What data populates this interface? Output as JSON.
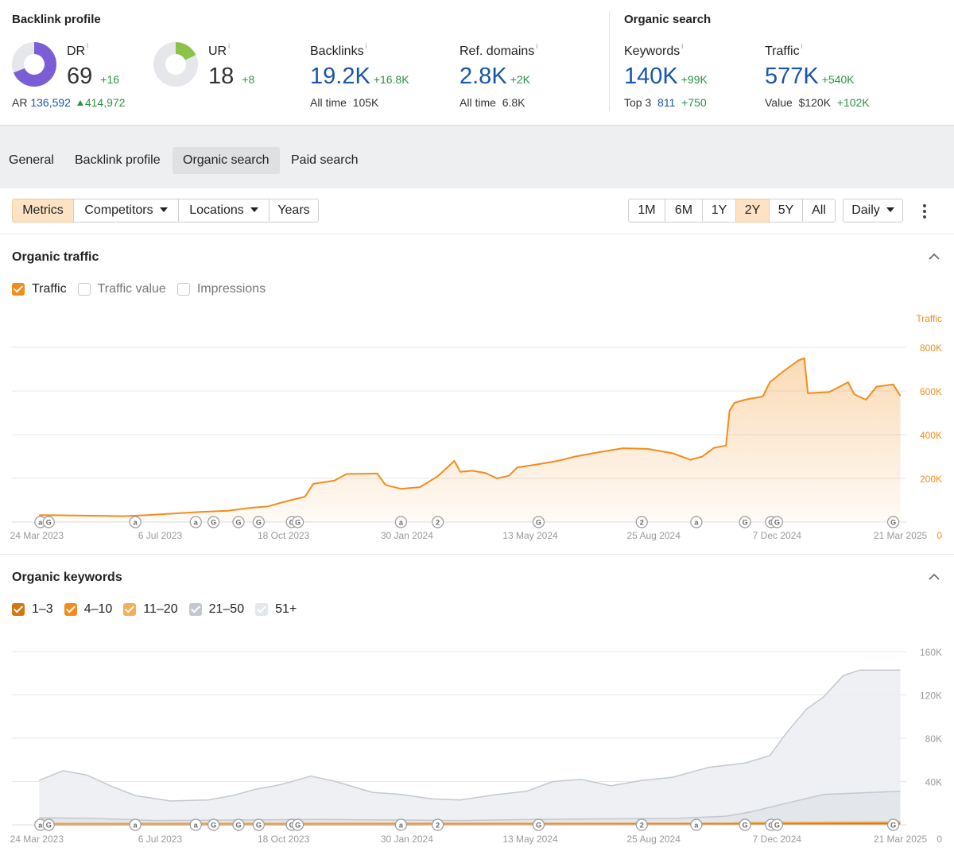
{
  "backlink_profile": {
    "title": "Backlink profile",
    "dr": {
      "label": "DR",
      "info": "i",
      "value": "69",
      "delta": "+16",
      "fraction": 0.69,
      "color": "#7b5ed6"
    },
    "ar": {
      "label": "AR",
      "value": "136,592",
      "delta": "414,972"
    },
    "ur": {
      "label": "UR",
      "info": "i",
      "value": "18",
      "delta": "+8",
      "fraction": 0.18,
      "color": "#8bc34a"
    },
    "backlinks": {
      "label": "Backlinks",
      "info": "i",
      "value": "19.2K",
      "delta": "+16.8K",
      "sub_label": "All time",
      "sub_value": "105K"
    },
    "ref_domains": {
      "label": "Ref. domains",
      "info": "i",
      "value": "2.8K",
      "delta": "+2K",
      "sub_label": "All time",
      "sub_value": "6.8K"
    }
  },
  "organic_search": {
    "title": "Organic search",
    "keywords": {
      "label": "Keywords",
      "info": "i",
      "value": "140K",
      "delta": "+99K",
      "sub_label": "Top 3",
      "sub_value": "811",
      "sub_delta": "+750"
    },
    "traffic": {
      "label": "Traffic",
      "info": "i",
      "value": "577K",
      "delta": "+540K",
      "sub_label": "Value",
      "sub_value": "$120K",
      "sub_delta": "+102K"
    }
  },
  "tabs": [
    {
      "label": "General",
      "active": false
    },
    {
      "label": "Backlink profile",
      "active": false
    },
    {
      "label": "Organic search",
      "active": true
    },
    {
      "label": "Paid search",
      "active": false
    }
  ],
  "toolbar": {
    "metrics": "Metrics",
    "competitors": "Competitors",
    "locations": "Locations",
    "years": "Years",
    "ranges": [
      "1M",
      "6M",
      "1Y",
      "2Y",
      "5Y",
      "All"
    ],
    "active_range": "2Y",
    "interval": "Daily",
    "more_icon": "kebab-icon"
  },
  "colors": {
    "orange": "#f28c1c",
    "orange_dark": "#d2760f",
    "orange_light": "#f6ad5a",
    "gray_series": "#c3c8d0",
    "gray_light": "#e3e6eb",
    "link_blue": "#1a56a8",
    "green": "#2b9443"
  },
  "organic_traffic": {
    "title": "Organic traffic",
    "checkboxes": [
      {
        "label": "Traffic",
        "checked": true
      },
      {
        "label": "Traffic value",
        "checked": false
      },
      {
        "label": "Impressions",
        "checked": false
      }
    ]
  },
  "organic_keywords": {
    "title": "Organic keywords",
    "checkboxes": [
      {
        "label": "1–3",
        "checked": true,
        "color": "#d2760f"
      },
      {
        "label": "4–10",
        "checked": true,
        "color": "#f28c1c"
      },
      {
        "label": "11–20",
        "checked": true,
        "color": "#f6ad5a"
      },
      {
        "label": "21–50",
        "checked": true,
        "color": "#c3c8d0"
      },
      {
        "label": "51+",
        "checked": true,
        "color": "#e3e6eb"
      }
    ]
  },
  "chart_data": [
    {
      "type": "area",
      "name": "organic-traffic",
      "ylabel": "Traffic",
      "ylim": [
        0,
        800000
      ],
      "yticks": [
        0,
        200000,
        400000,
        600000,
        800000
      ],
      "ytick_labels": [
        "0",
        "200K",
        "400K",
        "600K",
        "800K"
      ],
      "xlim": [
        "2023-03-03",
        "2025-03-26"
      ],
      "xticks": [
        "2023-03-24",
        "2023-07-06",
        "2023-10-18",
        "2024-01-30",
        "2024-05-13",
        "2024-08-25",
        "2024-12-07",
        "2025-03-21"
      ],
      "xtick_labels": [
        "24 Mar 2023",
        "6 Jul 2023",
        "18 Oct 2023",
        "30 Jan 2024",
        "13 May 2024",
        "25 Aug 2024",
        "7 Dec 2024",
        "21 Mar 2025"
      ],
      "grid": true,
      "series": [
        {
          "name": "Traffic",
          "color": "#f28c1c",
          "points": [
            [
              "2023-03-26",
              32000
            ],
            [
              "2023-04-15",
              31000
            ],
            [
              "2023-05-10",
              29000
            ],
            [
              "2023-06-05",
              27000
            ],
            [
              "2023-06-25",
              32000
            ],
            [
              "2023-07-20",
              40000
            ],
            [
              "2023-08-10",
              47000
            ],
            [
              "2023-09-01",
              52000
            ],
            [
              "2023-09-20",
              65000
            ],
            [
              "2023-10-05",
              72000
            ],
            [
              "2023-10-20",
              95000
            ],
            [
              "2023-11-05",
              116000
            ],
            [
              "2023-11-12",
              175000
            ],
            [
              "2023-11-30",
              190000
            ],
            [
              "2023-12-10",
              220000
            ],
            [
              "2024-01-05",
              222000
            ],
            [
              "2024-01-12",
              170000
            ],
            [
              "2024-01-25",
              152000
            ],
            [
              "2024-02-10",
              160000
            ],
            [
              "2024-02-25",
              210000
            ],
            [
              "2024-03-05",
              255000
            ],
            [
              "2024-03-10",
              280000
            ],
            [
              "2024-03-15",
              230000
            ],
            [
              "2024-03-25",
              235000
            ],
            [
              "2024-04-05",
              225000
            ],
            [
              "2024-04-15",
              200000
            ],
            [
              "2024-04-25",
              212000
            ],
            [
              "2024-05-02",
              250000
            ],
            [
              "2024-05-20",
              265000
            ],
            [
              "2024-06-05",
              280000
            ],
            [
              "2024-06-20",
              300000
            ],
            [
              "2024-07-10",
              320000
            ],
            [
              "2024-07-30",
              338000
            ],
            [
              "2024-08-20",
              335000
            ],
            [
              "2024-09-10",
              315000
            ],
            [
              "2024-09-25",
              285000
            ],
            [
              "2024-10-05",
              300000
            ],
            [
              "2024-10-15",
              340000
            ],
            [
              "2024-10-25",
              350000
            ],
            [
              "2024-10-28",
              510000
            ],
            [
              "2024-11-01",
              545000
            ],
            [
              "2024-11-10",
              560000
            ],
            [
              "2024-11-25",
              575000
            ],
            [
              "2024-12-01",
              640000
            ],
            [
              "2024-12-10",
              680000
            ],
            [
              "2024-12-25",
              740000
            ],
            [
              "2024-12-30",
              750000
            ],
            [
              "2025-01-02",
              590000
            ],
            [
              "2025-01-20",
              595000
            ],
            [
              "2025-02-05",
              640000
            ],
            [
              "2025-02-10",
              585000
            ],
            [
              "2025-02-20",
              560000
            ],
            [
              "2025-03-01",
              620000
            ],
            [
              "2025-03-15",
              630000
            ],
            [
              "2025-03-21",
              577000
            ]
          ]
        }
      ],
      "annotations": [
        {
          "x": "2023-03-27",
          "label": "a"
        },
        {
          "x": "2023-04-03",
          "label": "G"
        },
        {
          "x": "2023-06-15",
          "label": "a"
        },
        {
          "x": "2023-08-05",
          "label": "a"
        },
        {
          "x": "2023-08-20",
          "label": "G"
        },
        {
          "x": "2023-09-10",
          "label": "G"
        },
        {
          "x": "2023-09-27",
          "label": "G"
        },
        {
          "x": "2023-10-25",
          "label": "G"
        },
        {
          "x": "2023-10-30",
          "label": "G"
        },
        {
          "x": "2024-01-25",
          "label": "a"
        },
        {
          "x": "2024-02-25",
          "label": "2"
        },
        {
          "x": "2024-05-20",
          "label": "G"
        },
        {
          "x": "2024-08-15",
          "label": "2"
        },
        {
          "x": "2024-09-30",
          "label": "a"
        },
        {
          "x": "2024-11-10",
          "label": "G"
        },
        {
          "x": "2024-12-02",
          "label": "G"
        },
        {
          "x": "2024-12-07",
          "label": "G"
        },
        {
          "x": "2025-03-15",
          "label": "G"
        }
      ]
    },
    {
      "type": "area",
      "name": "organic-keywords",
      "ylim": [
        0,
        160000
      ],
      "yticks": [
        0,
        40000,
        80000,
        120000,
        160000
      ],
      "ytick_labels": [
        "0",
        "40K",
        "80K",
        "120K",
        "160K"
      ],
      "xlim": [
        "2023-03-03",
        "2025-03-26"
      ],
      "xticks": [
        "2023-03-24",
        "2023-07-06",
        "2023-10-18",
        "2024-01-30",
        "2024-05-13",
        "2024-08-25",
        "2024-12-07",
        "2025-03-21"
      ],
      "xtick_labels": [
        "24 Mar 2023",
        "6 Jul 2023",
        "18 Oct 2023",
        "30 Jan 2024",
        "13 May 2024",
        "25 Aug 2024",
        "7 Dec 2024",
        "21 Mar 2025"
      ],
      "grid": true,
      "stacked": false,
      "series": [
        {
          "name": "51+",
          "color": "#c3c8d0",
          "fill": "#eceef2",
          "points": [
            [
              "2023-03-26",
              41000
            ],
            [
              "2023-04-15",
              50000
            ],
            [
              "2023-05-05",
              46000
            ],
            [
              "2023-05-25",
              36000
            ],
            [
              "2023-06-15",
              27000
            ],
            [
              "2023-07-15",
              22000
            ],
            [
              "2023-08-15",
              23000
            ],
            [
              "2023-09-05",
              27000
            ],
            [
              "2023-09-25",
              33000
            ],
            [
              "2023-10-15",
              37000
            ],
            [
              "2023-11-10",
              45000
            ],
            [
              "2023-12-01",
              40000
            ],
            [
              "2024-01-01",
              30000
            ],
            [
              "2024-01-25",
              28000
            ],
            [
              "2024-02-20",
              24000
            ],
            [
              "2024-03-15",
              23000
            ],
            [
              "2024-04-15",
              28000
            ],
            [
              "2024-05-10",
              31000
            ],
            [
              "2024-06-01",
              40000
            ],
            [
              "2024-06-25",
              42000
            ],
            [
              "2024-07-20",
              36000
            ],
            [
              "2024-08-15",
              41000
            ],
            [
              "2024-09-10",
              44000
            ],
            [
              "2024-10-10",
              53000
            ],
            [
              "2024-11-10",
              57000
            ],
            [
              "2024-12-01",
              64000
            ],
            [
              "2024-12-15",
              85000
            ],
            [
              "2025-01-01",
              107000
            ],
            [
              "2025-01-15",
              118000
            ],
            [
              "2025-02-01",
              138000
            ],
            [
              "2025-02-15",
              143000
            ],
            [
              "2025-03-21",
              143000
            ]
          ]
        },
        {
          "name": "21–50",
          "color": "#c3c8d0",
          "fill": "#e1e4e9",
          "points": [
            [
              "2023-03-26",
              6500
            ],
            [
              "2023-05-10",
              6000
            ],
            [
              "2023-07-01",
              4000
            ],
            [
              "2023-09-10",
              4500
            ],
            [
              "2023-11-15",
              5000
            ],
            [
              "2024-01-15",
              4500
            ],
            [
              "2024-03-15",
              4000
            ],
            [
              "2024-05-15",
              5000
            ],
            [
              "2024-07-15",
              5500
            ],
            [
              "2024-09-15",
              6000
            ],
            [
              "2024-10-25",
              8000
            ],
            [
              "2024-11-15",
              12000
            ],
            [
              "2024-12-15",
              20000
            ],
            [
              "2025-01-15",
              28000
            ],
            [
              "2025-03-21",
              31000
            ]
          ]
        },
        {
          "name": "11–20",
          "color": "#f6ad5a",
          "points": [
            [
              "2023-03-26",
              1200
            ],
            [
              "2024-06-01",
              1400
            ],
            [
              "2024-10-28",
              1500
            ],
            [
              "2024-11-10",
              2000
            ],
            [
              "2025-03-21",
              2600
            ]
          ]
        },
        {
          "name": "4–10",
          "color": "#f28c1c",
          "points": [
            [
              "2023-03-26",
              300
            ],
            [
              "2024-06-01",
              500
            ],
            [
              "2024-10-28",
              800
            ],
            [
              "2025-03-21",
              1300
            ]
          ]
        },
        {
          "name": "1–3",
          "color": "#d2760f",
          "points": [
            [
              "2023-03-26",
              50
            ],
            [
              "2024-06-01",
              150
            ],
            [
              "2024-10-28",
              300
            ],
            [
              "2025-03-21",
              811
            ]
          ]
        }
      ]
    }
  ]
}
